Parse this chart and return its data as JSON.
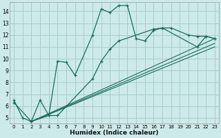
{
  "bg_color": "#cceaea",
  "grid_color": "#aacccc",
  "line_color": "#1a6b5a",
  "xlabel": "Humidex (Indice chaleur)",
  "xlim": [
    -0.5,
    23.5
  ],
  "ylim": [
    4.5,
    14.8
  ],
  "xticks": [
    0,
    1,
    2,
    3,
    4,
    5,
    6,
    7,
    8,
    9,
    10,
    11,
    12,
    13,
    14,
    15,
    16,
    17,
    18,
    19,
    20,
    21,
    22,
    23
  ],
  "yticks": [
    5,
    6,
    7,
    8,
    9,
    10,
    11,
    12,
    13,
    14
  ],
  "line1_x": [
    0,
    1,
    2,
    3,
    4,
    5,
    6,
    7,
    9,
    10,
    11,
    12,
    13,
    14,
    15,
    16,
    17,
    18,
    20,
    21,
    22,
    23
  ],
  "line1_y": [
    6.5,
    5.0,
    4.7,
    6.5,
    5.2,
    9.8,
    9.7,
    8.6,
    12.0,
    14.2,
    13.9,
    14.5,
    14.5,
    11.7,
    11.5,
    12.4,
    12.6,
    12.6,
    12.0,
    11.9,
    11.9,
    11.7
  ],
  "line2_x": [
    0,
    2,
    4,
    5,
    9,
    10,
    11,
    12,
    16,
    17,
    21,
    22,
    23
  ],
  "line2_y": [
    6.3,
    4.7,
    5.2,
    5.2,
    8.3,
    9.8,
    10.8,
    11.5,
    12.5,
    12.6,
    11.0,
    11.9,
    11.7
  ],
  "line3_x": [
    2,
    23
  ],
  "line3_y": [
    4.7,
    11.7
  ],
  "line4_x": [
    2,
    23
  ],
  "line4_y": [
    4.7,
    11.3
  ],
  "line5_x": [
    2,
    23
  ],
  "line5_y": [
    4.7,
    11.0
  ]
}
